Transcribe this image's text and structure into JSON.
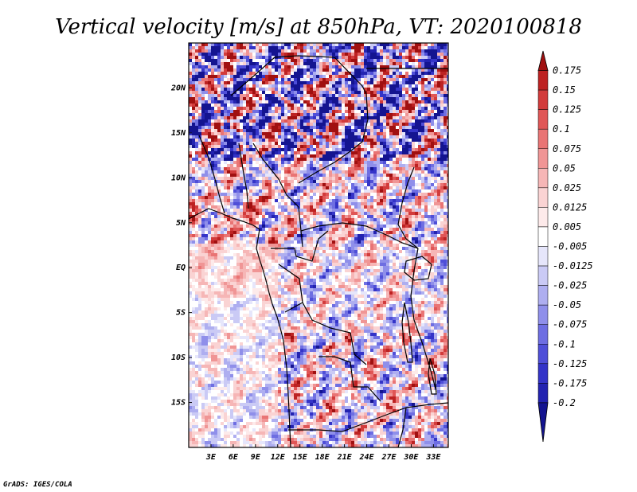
{
  "chart_data": {
    "type": "heatmap",
    "title": "Vertical velocity [m/s] at 850hPa, VT: 2020100818",
    "variable": "Vertical velocity",
    "units": "m/s",
    "level": "850hPa",
    "valid_time": "2020100818",
    "x_axis": {
      "label": "",
      "range": [
        0,
        35
      ],
      "ticks": [
        3,
        6,
        9,
        12,
        15,
        18,
        21,
        24,
        27,
        30,
        33
      ],
      "tick_labels": [
        "3E",
        "6E",
        "9E",
        "12E",
        "15E",
        "18E",
        "21E",
        "24E",
        "27E",
        "30E",
        "33E"
      ]
    },
    "y_axis": {
      "label": "",
      "range": [
        -20,
        25
      ],
      "ticks": [
        20,
        15,
        10,
        5,
        0,
        -5,
        -10,
        -15
      ],
      "tick_labels": [
        "20N",
        "15N",
        "10N",
        "5N",
        "EQ",
        "5S",
        "10S",
        "15S"
      ]
    },
    "colorbar": {
      "orientation": "vertical",
      "placement": "right",
      "levels": [
        "0.175",
        "0.15",
        "0.125",
        "0.1",
        "0.075",
        "0.05",
        "0.025",
        "0.0125",
        "0.005",
        "-0.005",
        "-0.0125",
        "-0.025",
        "-0.05",
        "-0.075",
        "-0.1",
        "-0.125",
        "-0.175",
        "-0.2"
      ],
      "colors": [
        "#a01010",
        "#bd2222",
        "#d23b3b",
        "#e05656",
        "#e97474",
        "#f09595",
        "#f6b6b6",
        "#fad3d3",
        "#fdeaea",
        "#ffffff",
        "#e6e6fb",
        "#cacaf5",
        "#aeaef0",
        "#8f8fea",
        "#6e6ee2",
        "#4f4fd8",
        "#3434c8",
        "#2323b0",
        "#141490"
      ]
    }
  },
  "credit": "GrADS: IGES/COLA"
}
